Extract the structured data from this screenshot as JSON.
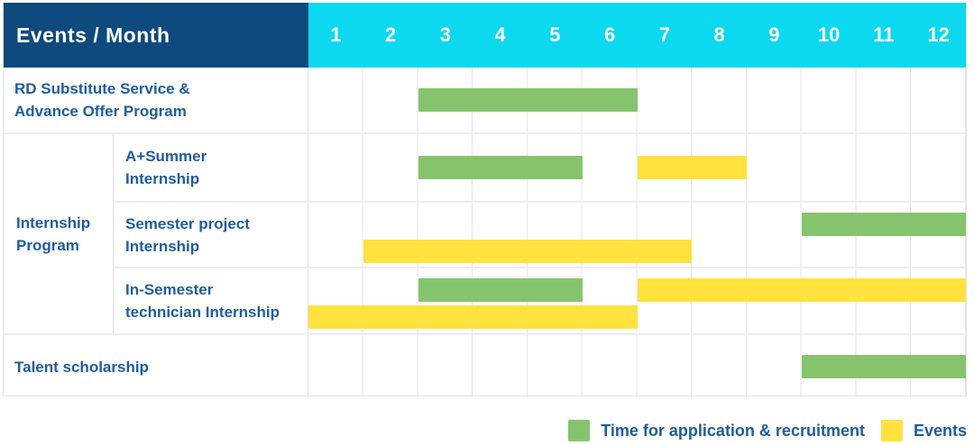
{
  "header": {
    "title": "Events / Month"
  },
  "group": {
    "label": "Internship\nProgram"
  },
  "legend": {
    "green_label": "Time for application & recruitment",
    "yellow_label": "Events"
  },
  "chart_data": {
    "type": "gantt",
    "title": "Events / Month",
    "months": [
      "1",
      "2",
      "3",
      "4",
      "5",
      "6",
      "7",
      "8",
      "9",
      "10",
      "11",
      "12"
    ],
    "colors": {
      "green": "#85c46d",
      "yellow": "#ffe23e",
      "header_blue": "#0e4a7d",
      "header_cyan": "#0cd8f0",
      "label_blue": "#1e5c9e"
    },
    "legend": [
      {
        "color": "green",
        "label": "Time for application & recruitment"
      },
      {
        "color": "yellow",
        "label": "Events"
      }
    ],
    "rows": [
      {
        "label": "RD Substitute Service &\nAdvance Offer Program",
        "group": null,
        "bars": [
          {
            "type": "green",
            "start": 3,
            "end": 6,
            "lane": "center"
          }
        ]
      },
      {
        "label": "A+Summer\nInternship",
        "group": "Internship Program",
        "bars": [
          {
            "type": "green",
            "start": 3,
            "end": 5,
            "lane": "center"
          },
          {
            "type": "yellow",
            "start": 7,
            "end": 8,
            "lane": "center"
          }
        ]
      },
      {
        "label": "Semester project\nInternship",
        "group": "Internship Program",
        "bars": [
          {
            "type": "green",
            "start": 10,
            "end": 12,
            "lane": "top"
          },
          {
            "type": "yellow",
            "start": 2,
            "end": 7,
            "lane": "bottom"
          }
        ]
      },
      {
        "label": "In-Semester\ntechnician Internship",
        "group": "Internship Program",
        "bars": [
          {
            "type": "green",
            "start": 3,
            "end": 5,
            "lane": "top"
          },
          {
            "type": "yellow",
            "start": 7,
            "end": 12,
            "lane": "top"
          },
          {
            "type": "yellow",
            "start": 1,
            "end": 6,
            "lane": "bottom"
          }
        ]
      },
      {
        "label": "Talent scholarship",
        "group": null,
        "bars": [
          {
            "type": "green",
            "start": 10,
            "end": 12,
            "lane": "center"
          }
        ]
      }
    ]
  }
}
